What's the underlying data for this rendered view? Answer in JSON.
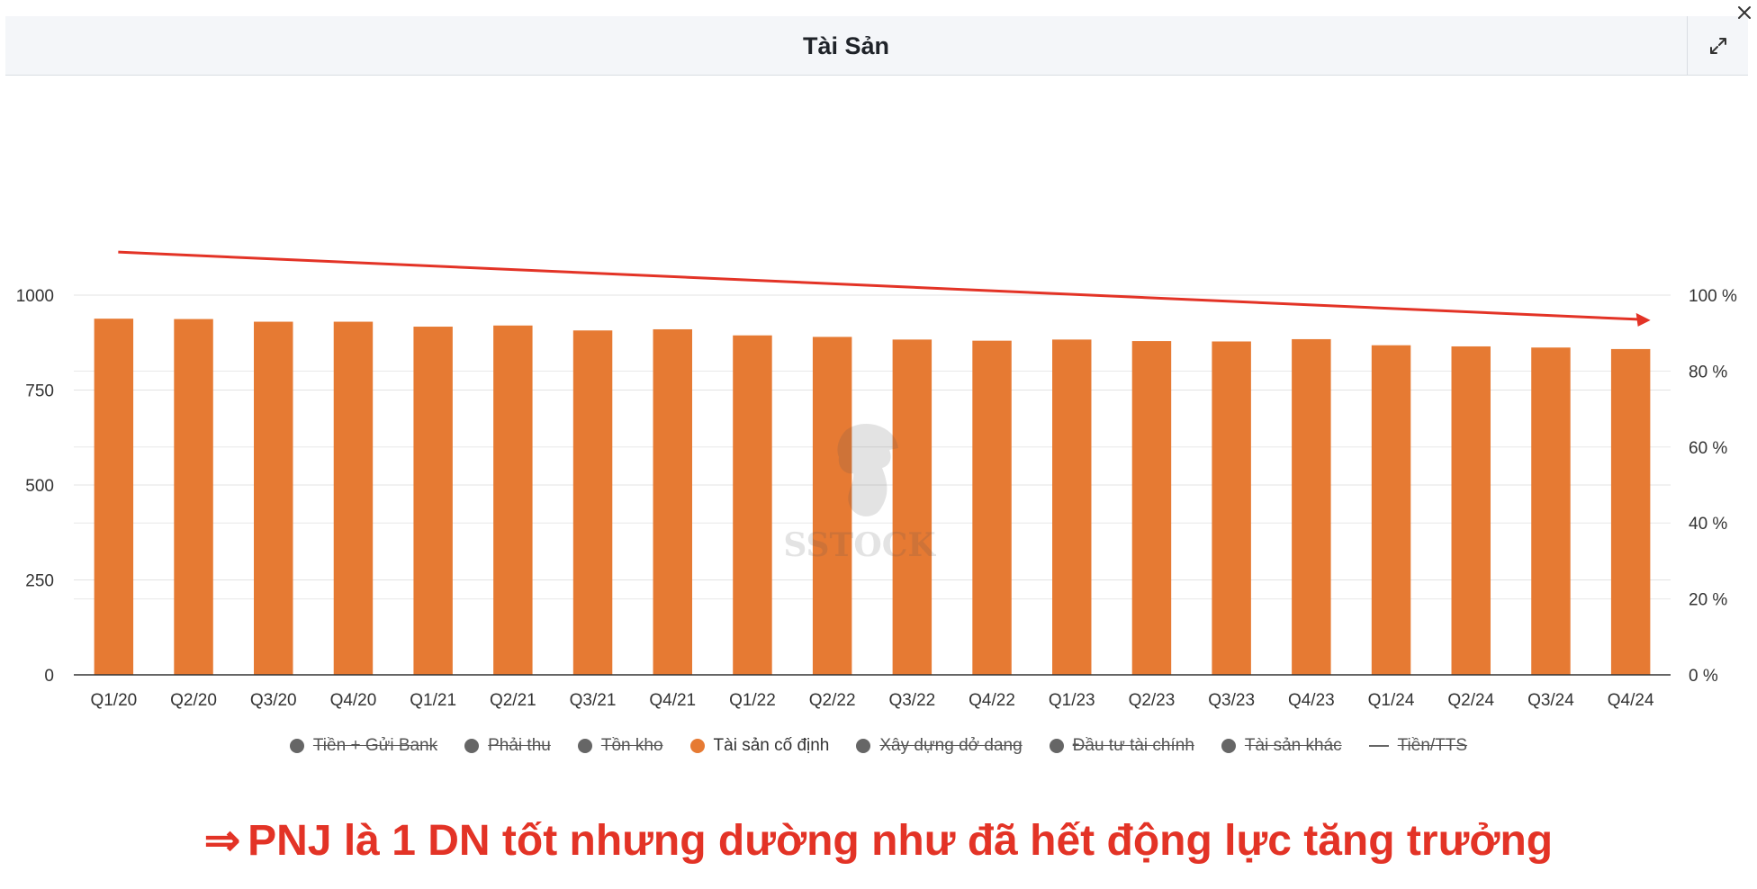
{
  "header": {
    "title": "Tài Sản"
  },
  "icons": {
    "expand": "expand-icon",
    "close": "close-icon",
    "watermark": "horse-logo-watermark"
  },
  "colors": {
    "bar": "#e67a33",
    "trend_arrow": "#e33326",
    "legend_off": "#666666",
    "conclusion": "#e33326"
  },
  "watermark": {
    "text": "SSTOCK"
  },
  "chart_data": {
    "type": "bar",
    "title": "Tài Sản",
    "categories": [
      "Q1/20",
      "Q2/20",
      "Q3/20",
      "Q4/20",
      "Q1/21",
      "Q2/21",
      "Q3/21",
      "Q4/21",
      "Q1/22",
      "Q2/22",
      "Q3/22",
      "Q4/22",
      "Q1/23",
      "Q2/23",
      "Q3/23",
      "Q4/23",
      "Q1/24",
      "Q2/24",
      "Q3/24",
      "Q4/24"
    ],
    "series": [
      {
        "name": "Tài sản cố định",
        "color": "#e67a33",
        "values": [
          938,
          937,
          930,
          930,
          917,
          920,
          907,
          910,
          894,
          890,
          883,
          880,
          883,
          879,
          878,
          884,
          868,
          865,
          862,
          858
        ]
      }
    ],
    "y_left": {
      "ticks": [
        "0",
        "250",
        "500",
        "750",
        "1000"
      ],
      "ylim": [
        0,
        1000
      ]
    },
    "y_right": {
      "ticks": [
        "0 %",
        "20 %",
        "40 %",
        "60 %",
        "80 %",
        "100 %"
      ],
      "ylim": [
        0,
        100
      ]
    },
    "grid": true,
    "legend_position": "bottom",
    "legend": [
      {
        "label": "Tiền + Gửi Bank",
        "marker": "dot",
        "active": false
      },
      {
        "label": "Phải thu",
        "marker": "dot",
        "active": false
      },
      {
        "label": "Tồn kho",
        "marker": "dot",
        "active": false
      },
      {
        "label": "Tài sản cố định",
        "marker": "dot",
        "active": true
      },
      {
        "label": "Xây dựng dở dang",
        "marker": "dot",
        "active": false
      },
      {
        "label": "Đầu tư tài chính",
        "marker": "dot",
        "active": false
      },
      {
        "label": "Tài sản khác",
        "marker": "dot",
        "active": false
      },
      {
        "label": "Tiền/TTS",
        "marker": "line",
        "active": false
      }
    ],
    "annotation": {
      "type": "downward trend arrow",
      "from_category": "Q1/20",
      "to_category": "Q4/24"
    }
  },
  "conclusion": {
    "arrow": "⇒",
    "text": "PNJ là 1 DN tốt nhưng dường như đã hết động lực tăng trưởng"
  }
}
